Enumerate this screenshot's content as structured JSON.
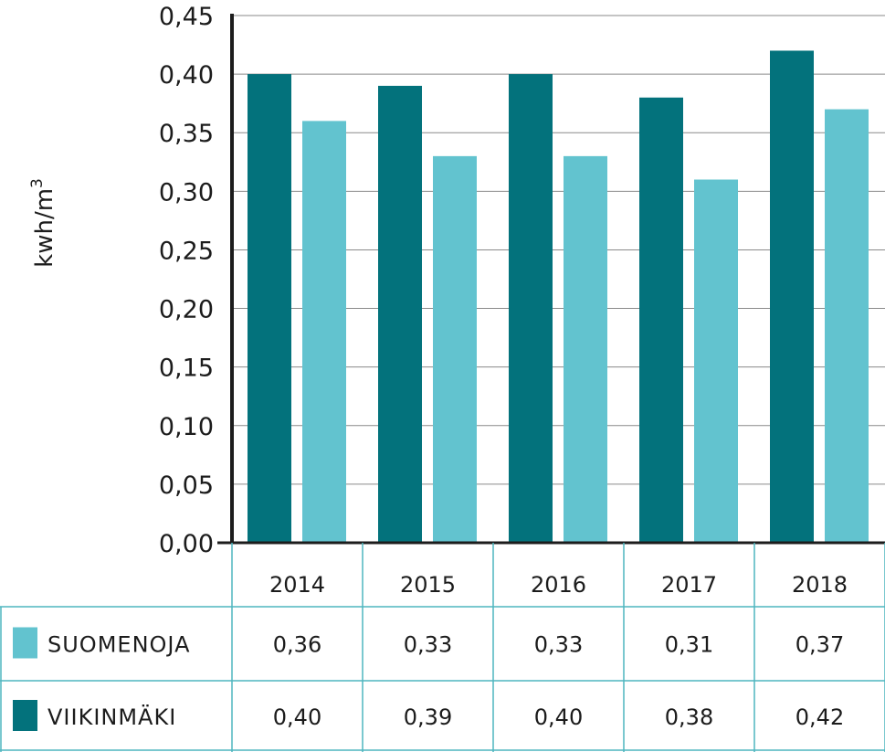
{
  "chart_data": {
    "type": "bar",
    "ylabel": "kwh/m",
    "ylabel_superscript": "3",
    "ylim": [
      0,
      0.45
    ],
    "yticks": [
      "0,00",
      "0,05",
      "0,10",
      "0,15",
      "0,20",
      "0,25",
      "0,30",
      "0,35",
      "0,40",
      "0,45"
    ],
    "ytick_values": [
      0,
      0.05,
      0.1,
      0.15,
      0.2,
      0.25,
      0.3,
      0.35,
      0.4,
      0.45
    ],
    "grid": true,
    "categories": [
      "2014",
      "2015",
      "2016",
      "2017",
      "2018"
    ],
    "series": [
      {
        "name": "VIIKINMÄKI",
        "color": "#03727c",
        "values": [
          0.4,
          0.39,
          0.4,
          0.38,
          0.42
        ],
        "labels": [
          "0,40",
          "0,39",
          "0,40",
          "0,38",
          "0,42"
        ]
      },
      {
        "name": "SUOMENOJA",
        "color": "#62c3cf",
        "values": [
          0.36,
          0.33,
          0.33,
          0.31,
          0.37
        ],
        "labels": [
          "0,36",
          "0,33",
          "0,33",
          "0,31",
          "0,37"
        ]
      }
    ],
    "table_rows": [
      "SUOMENOJA",
      "VIIKINMÄKI"
    ]
  }
}
